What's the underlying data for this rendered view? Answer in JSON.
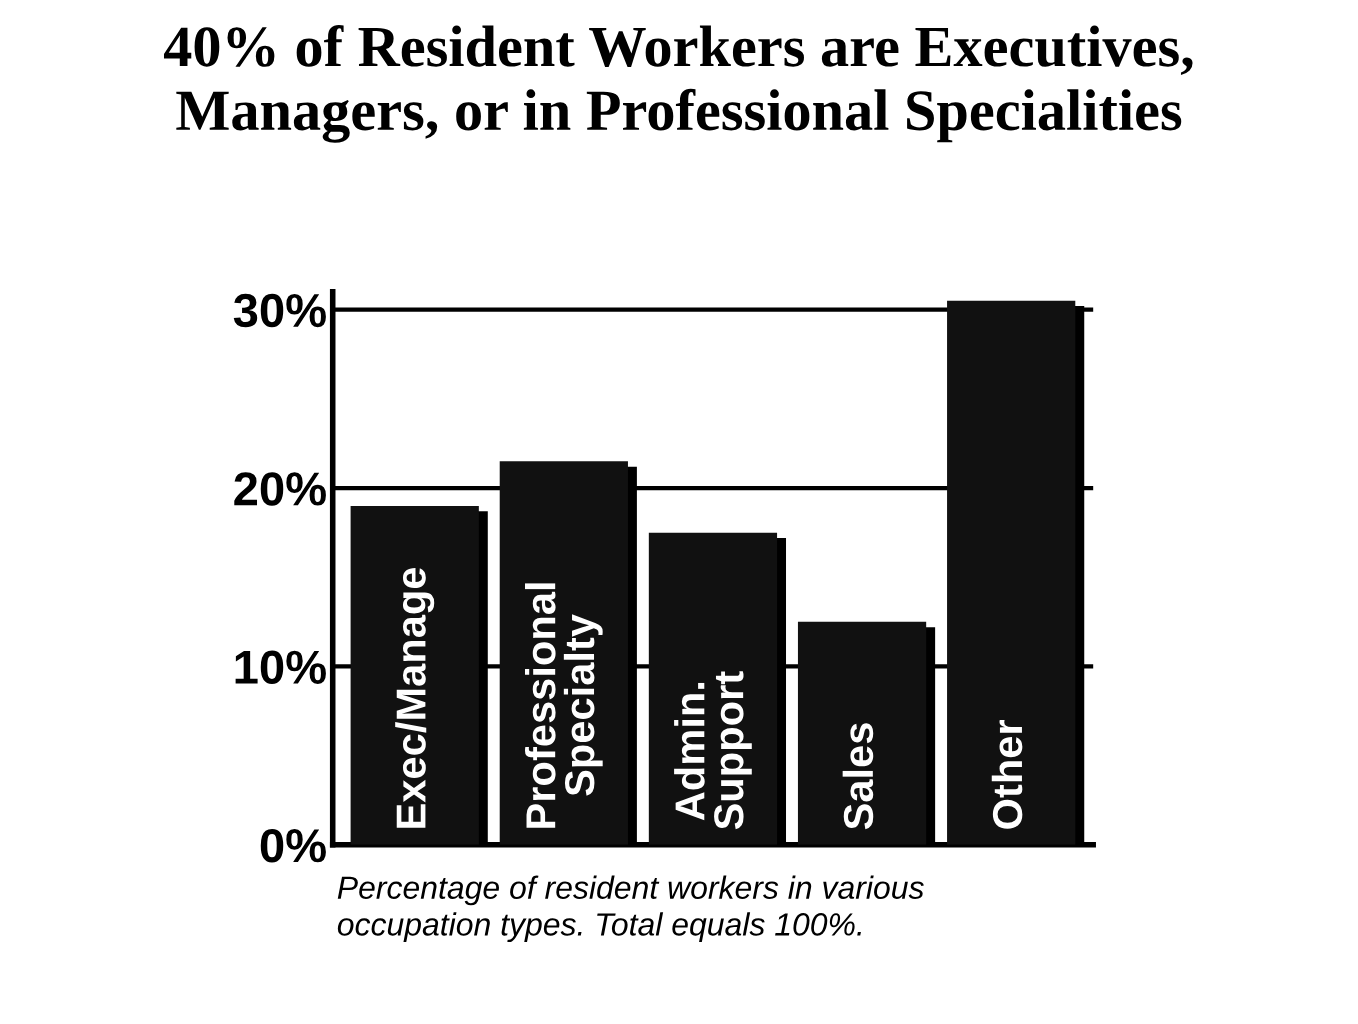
{
  "chart_data": {
    "type": "bar",
    "title": "40% of Resident Workers are Executives,\nManagers, or in Professional Specialities",
    "categories": [
      "Exec/Manage",
      "Professional\nSpecialty",
      "Admin.\nSupport",
      "Sales",
      "Other"
    ],
    "values": [
      19,
      21.5,
      17.5,
      12.5,
      30.5
    ],
    "color": "#111111",
    "ylim": [
      0,
      31
    ],
    "yticks": [
      {
        "value": 0,
        "label": "0%"
      },
      {
        "value": 10,
        "label": "10%"
      },
      {
        "value": 20,
        "label": "20%"
      },
      {
        "value": 30,
        "label": "30%"
      }
    ],
    "grid": "y",
    "legend": false,
    "annotations": [
      "Percentage of resident workers in various\noccupation types. Total equals 100%."
    ]
  }
}
